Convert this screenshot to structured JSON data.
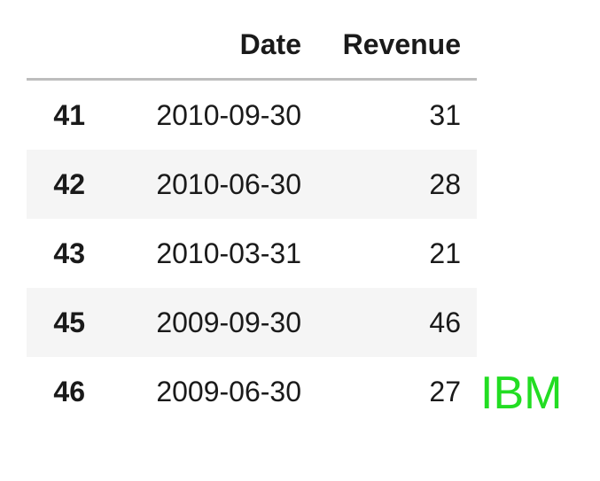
{
  "table": {
    "columns": {
      "index": "",
      "date": "Date",
      "revenue": "Revenue"
    },
    "rows": [
      {
        "index": "41",
        "date": "2010-09-30",
        "revenue": "31"
      },
      {
        "index": "42",
        "date": "2010-06-30",
        "revenue": "28"
      },
      {
        "index": "43",
        "date": "2010-03-31",
        "revenue": "21"
      },
      {
        "index": "45",
        "date": "2009-09-30",
        "revenue": "46"
      },
      {
        "index": "46",
        "date": "2009-06-30",
        "revenue": "27"
      }
    ]
  },
  "overlay": {
    "label": "IBM",
    "color": "#22dd22"
  },
  "colors": {
    "header_border": "#bdbdbd",
    "stripe": "#f5f5f5"
  }
}
